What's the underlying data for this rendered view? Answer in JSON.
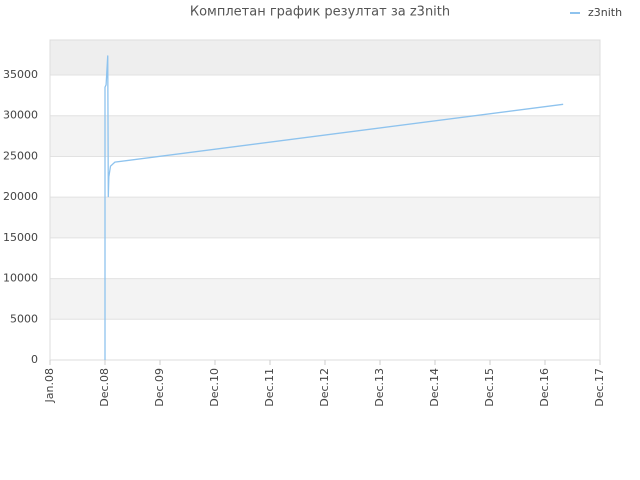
{
  "chart_data": {
    "type": "line",
    "title": "Комплетан график резултат за z3nith",
    "x": [
      1.0,
      1.0,
      1.0,
      1.02,
      1.03,
      1.05,
      1.06,
      1.07,
      1.1,
      1.18,
      9.33
    ],
    "series": [
      {
        "name": "z3nith",
        "color": "#8ec3ee",
        "values": [
          0,
          24500,
          33500,
          33800,
          35000,
          37400,
          20000,
          22500,
          23800,
          24300,
          31400
        ]
      }
    ],
    "xlim": [
      0,
      10
    ],
    "xticks": [
      {
        "value": 0,
        "label": "Jan.08"
      },
      {
        "value": 1,
        "label": "Dec.08"
      },
      {
        "value": 2,
        "label": "Dec.09"
      },
      {
        "value": 3,
        "label": "Dec.10"
      },
      {
        "value": 4,
        "label": "Dec.11"
      },
      {
        "value": 5,
        "label": "Dec.12"
      },
      {
        "value": 6,
        "label": "Dec.13"
      },
      {
        "value": 7,
        "label": "Dec.14"
      },
      {
        "value": 8,
        "label": "Dec.15"
      },
      {
        "value": 9,
        "label": "Dec.16"
      },
      {
        "value": 10,
        "label": "Dec.17"
      }
    ],
    "ylim": [
      0,
      39300
    ],
    "yticks": [
      0,
      5000,
      10000,
      15000,
      20000,
      25000,
      30000,
      35000
    ],
    "grid": true,
    "legend": "top-right"
  }
}
